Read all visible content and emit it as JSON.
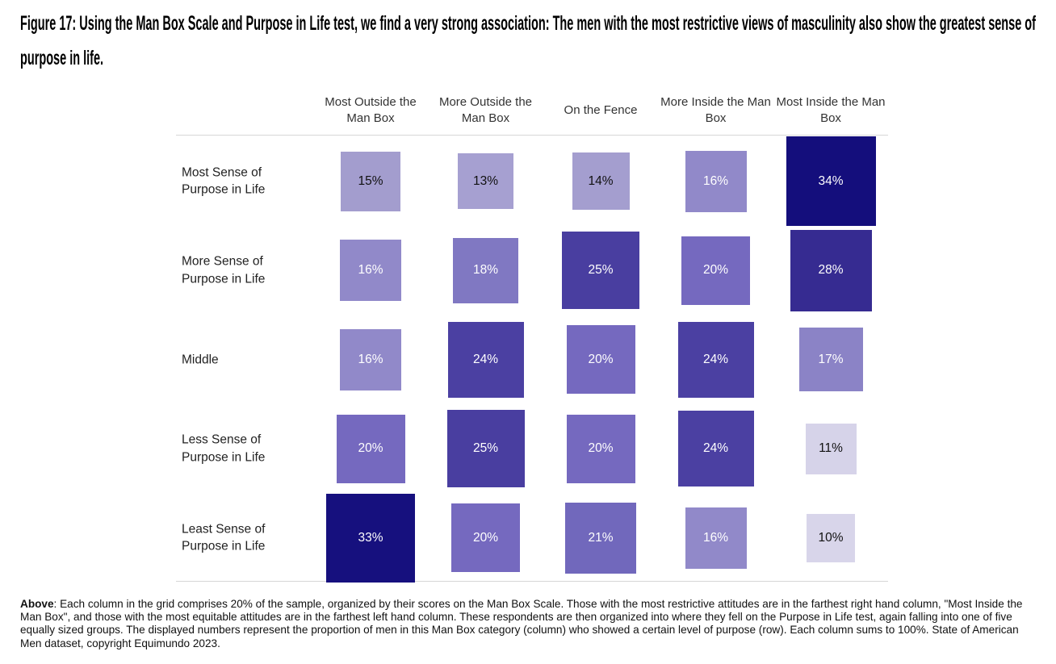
{
  "figure": {
    "title_line1": "Figure 17: Using the Man Box Scale and Purpose in Life test, we find a very strong association: The men with the most restrictive views of masculinity also show the greatest sense of",
    "title_line2": "purpose in life.",
    "footnote_label": "Above",
    "footnote_text": ": Each column in the grid comprises 20% of the sample, organized by their scores on the Man Box Scale. Those with the most restrictive attitudes are in the farthest right hand column, \"Most Inside the Man Box\", and those with the most equitable attitudes are in the farthest left hand column. These respondents are then organized into where they fell on the Purpose in Life test, again falling into one of five equally sized groups. The displayed numbers represent the proportion of men in this Man Box category (column) who showed a certain level of purpose (row). Each column sums to 100%. State of American Men dataset, copyright Equimundo 2023."
  },
  "chart_data": {
    "type": "heatmap",
    "title": "Figure 17: Using the Man Box Scale and Purpose in Life test, we find a very strong association: The men with the most restrictive views of masculinity also show the greatest sense of purpose in life.",
    "columns": [
      "Most Outside the Man Box",
      "More Outside the Man Box",
      "On the Fence",
      "More Inside the Man Box",
      "Most Inside the Man Box"
    ],
    "rows": [
      "Most Sense of\nPurpose in Life",
      "More Sense of\nPurpose in Life",
      "Middle",
      "Less Sense of\nPurpose in Life",
      "Least Sense of\nPurpose in Life"
    ],
    "values": [
      [
        15,
        13,
        14,
        16,
        34
      ],
      [
        16,
        18,
        25,
        20,
        28
      ],
      [
        16,
        24,
        20,
        24,
        17
      ],
      [
        20,
        25,
        20,
        24,
        11
      ],
      [
        33,
        20,
        21,
        16,
        10
      ]
    ],
    "unit": "%",
    "note": "Each column sums to 100%",
    "legend": "none",
    "encoding": "cell side length and color darkness proportional to value",
    "color_scale": {
      "10": "#d8d5ea",
      "11": "#d6d3e9",
      "13": "#a6a0d1",
      "14": "#a49ecf",
      "15": "#a39dce",
      "16": "#9189c9",
      "17": "#8b83c6",
      "18": "#8078c2",
      "20": "#7569bf",
      "21": "#7168bc",
      "24": "#4b40a2",
      "25": "#493ea0",
      "28": "#362b91",
      "33": "#16107e",
      "34": "#140e7c"
    },
    "white_label_min": 16,
    "label_dark_color": "#111111",
    "label_light_color": "#ffffff"
  }
}
